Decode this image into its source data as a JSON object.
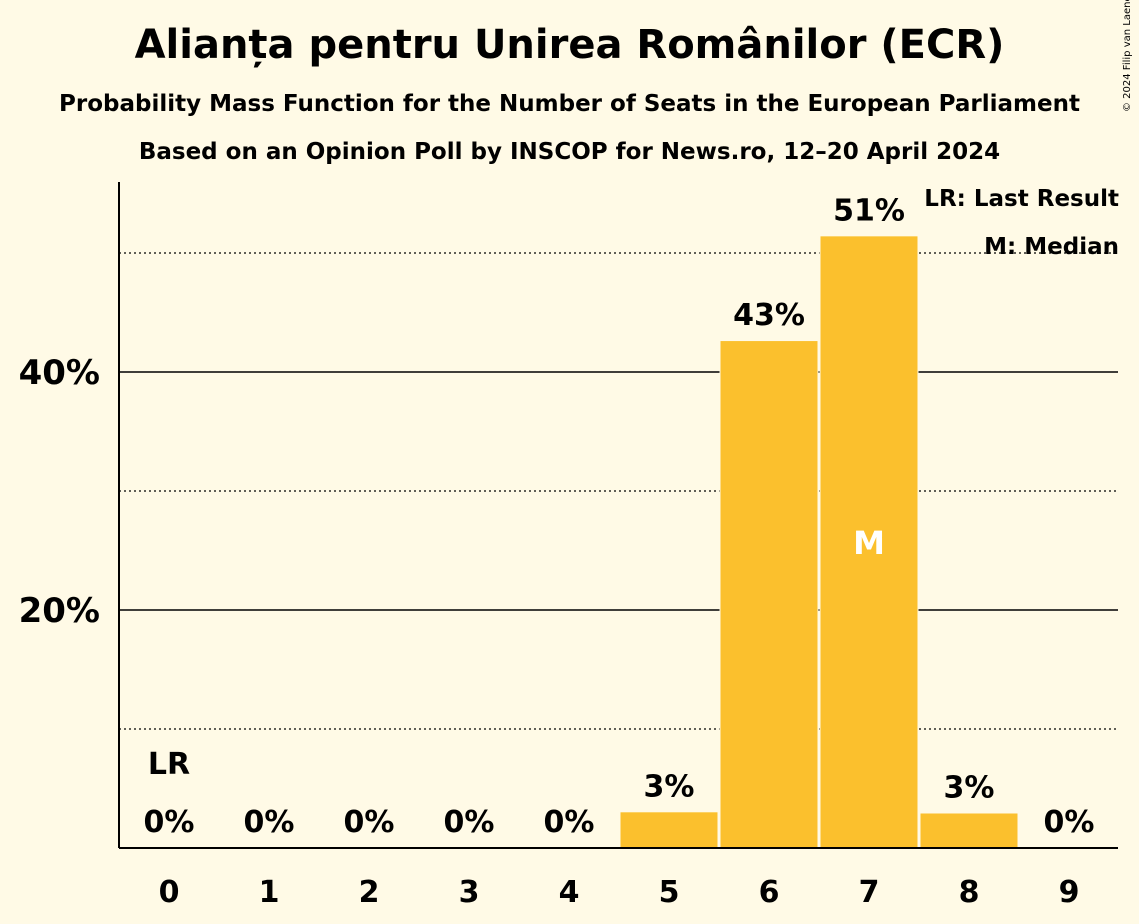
{
  "title": "Alianța pentru Unirea Românilor (ECR)",
  "subtitle": "Probability Mass Function for the Number of Seats in the European Parliament",
  "subtitle2": "Based on an Opinion Poll by INSCOP for News.ro, 12–20 April 2024",
  "copyright": "© 2024 Filip van Laenen",
  "legend": {
    "lr": "LR: Last Result",
    "m": "M: Median"
  },
  "chart_data": {
    "type": "bar",
    "categories": [
      "0",
      "1",
      "2",
      "3",
      "4",
      "5",
      "6",
      "7",
      "8",
      "9"
    ],
    "values": [
      0,
      0,
      0,
      0,
      0,
      3,
      43,
      51,
      3,
      0
    ],
    "value_labels": [
      "0%",
      "0%",
      "0%",
      "0%",
      "0%",
      "3%",
      "43%",
      "51%",
      "3%",
      "0%"
    ],
    "bar_heights_percent": [
      0,
      0,
      0,
      0,
      0,
      3.0,
      42.6,
      51.4,
      2.9,
      0
    ],
    "y_ticks": [
      20,
      40
    ],
    "y_tick_labels": [
      "20%",
      "40%"
    ],
    "y_minor_ticks": [
      10,
      30,
      50
    ],
    "ylim": [
      0,
      56
    ],
    "last_result_index": 0,
    "last_result_label": "LR",
    "median_index": 7,
    "median_label": "M",
    "bar_color": "#fbc02d",
    "grid": true
  }
}
